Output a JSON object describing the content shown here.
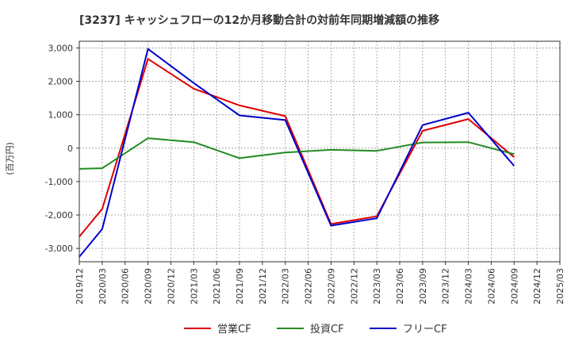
{
  "chart_data": {
    "type": "line",
    "title": "[3237]  キャッシュフローの12か月移動合計の対前年同期増減額の推移",
    "ylabel": "(百万円)",
    "xlabel": "",
    "ylim": [
      -3400,
      3200
    ],
    "yticks": [
      3000,
      2000,
      1000,
      0,
      -1000,
      -2000,
      -3000
    ],
    "ytick_labels": [
      "3,000",
      "2,000",
      "1,000",
      "0",
      "-1,000",
      "-2,000",
      "-3,000"
    ],
    "categories": [
      "2019/12",
      "2020/03",
      "2020/06",
      "2020/09",
      "2020/12",
      "2021/03",
      "2021/06",
      "2021/09",
      "2021/12",
      "2022/03",
      "2022/06",
      "2022/09",
      "2022/12",
      "2023/03",
      "2023/06",
      "2023/09",
      "2023/12",
      "2024/03",
      "2024/06",
      "2024/09",
      "2024/12",
      "2025/03"
    ],
    "grid": true,
    "legend_position": "bottom",
    "series": [
      {
        "name": "営業CF",
        "color": "#dd0000",
        "values": [
          -2650,
          -1820,
          null,
          2670,
          null,
          1780,
          null,
          1280,
          null,
          960,
          null,
          -2270,
          null,
          -2040,
          null,
          520,
          null,
          870,
          null,
          -270,
          null,
          null
        ]
      },
      {
        "name": "投資CF",
        "color": "#228b22",
        "values": [
          -620,
          -600,
          null,
          300,
          null,
          180,
          null,
          -300,
          null,
          -130,
          null,
          -50,
          null,
          -80,
          null,
          170,
          null,
          180,
          null,
          -180,
          null,
          null
        ]
      },
      {
        "name": "フリーCF",
        "color": "#0000cc",
        "values": [
          -3250,
          -2420,
          null,
          2970,
          null,
          1950,
          null,
          980,
          null,
          840,
          null,
          -2320,
          null,
          -2100,
          null,
          690,
          null,
          1060,
          null,
          -530,
          null,
          null
        ]
      }
    ]
  }
}
